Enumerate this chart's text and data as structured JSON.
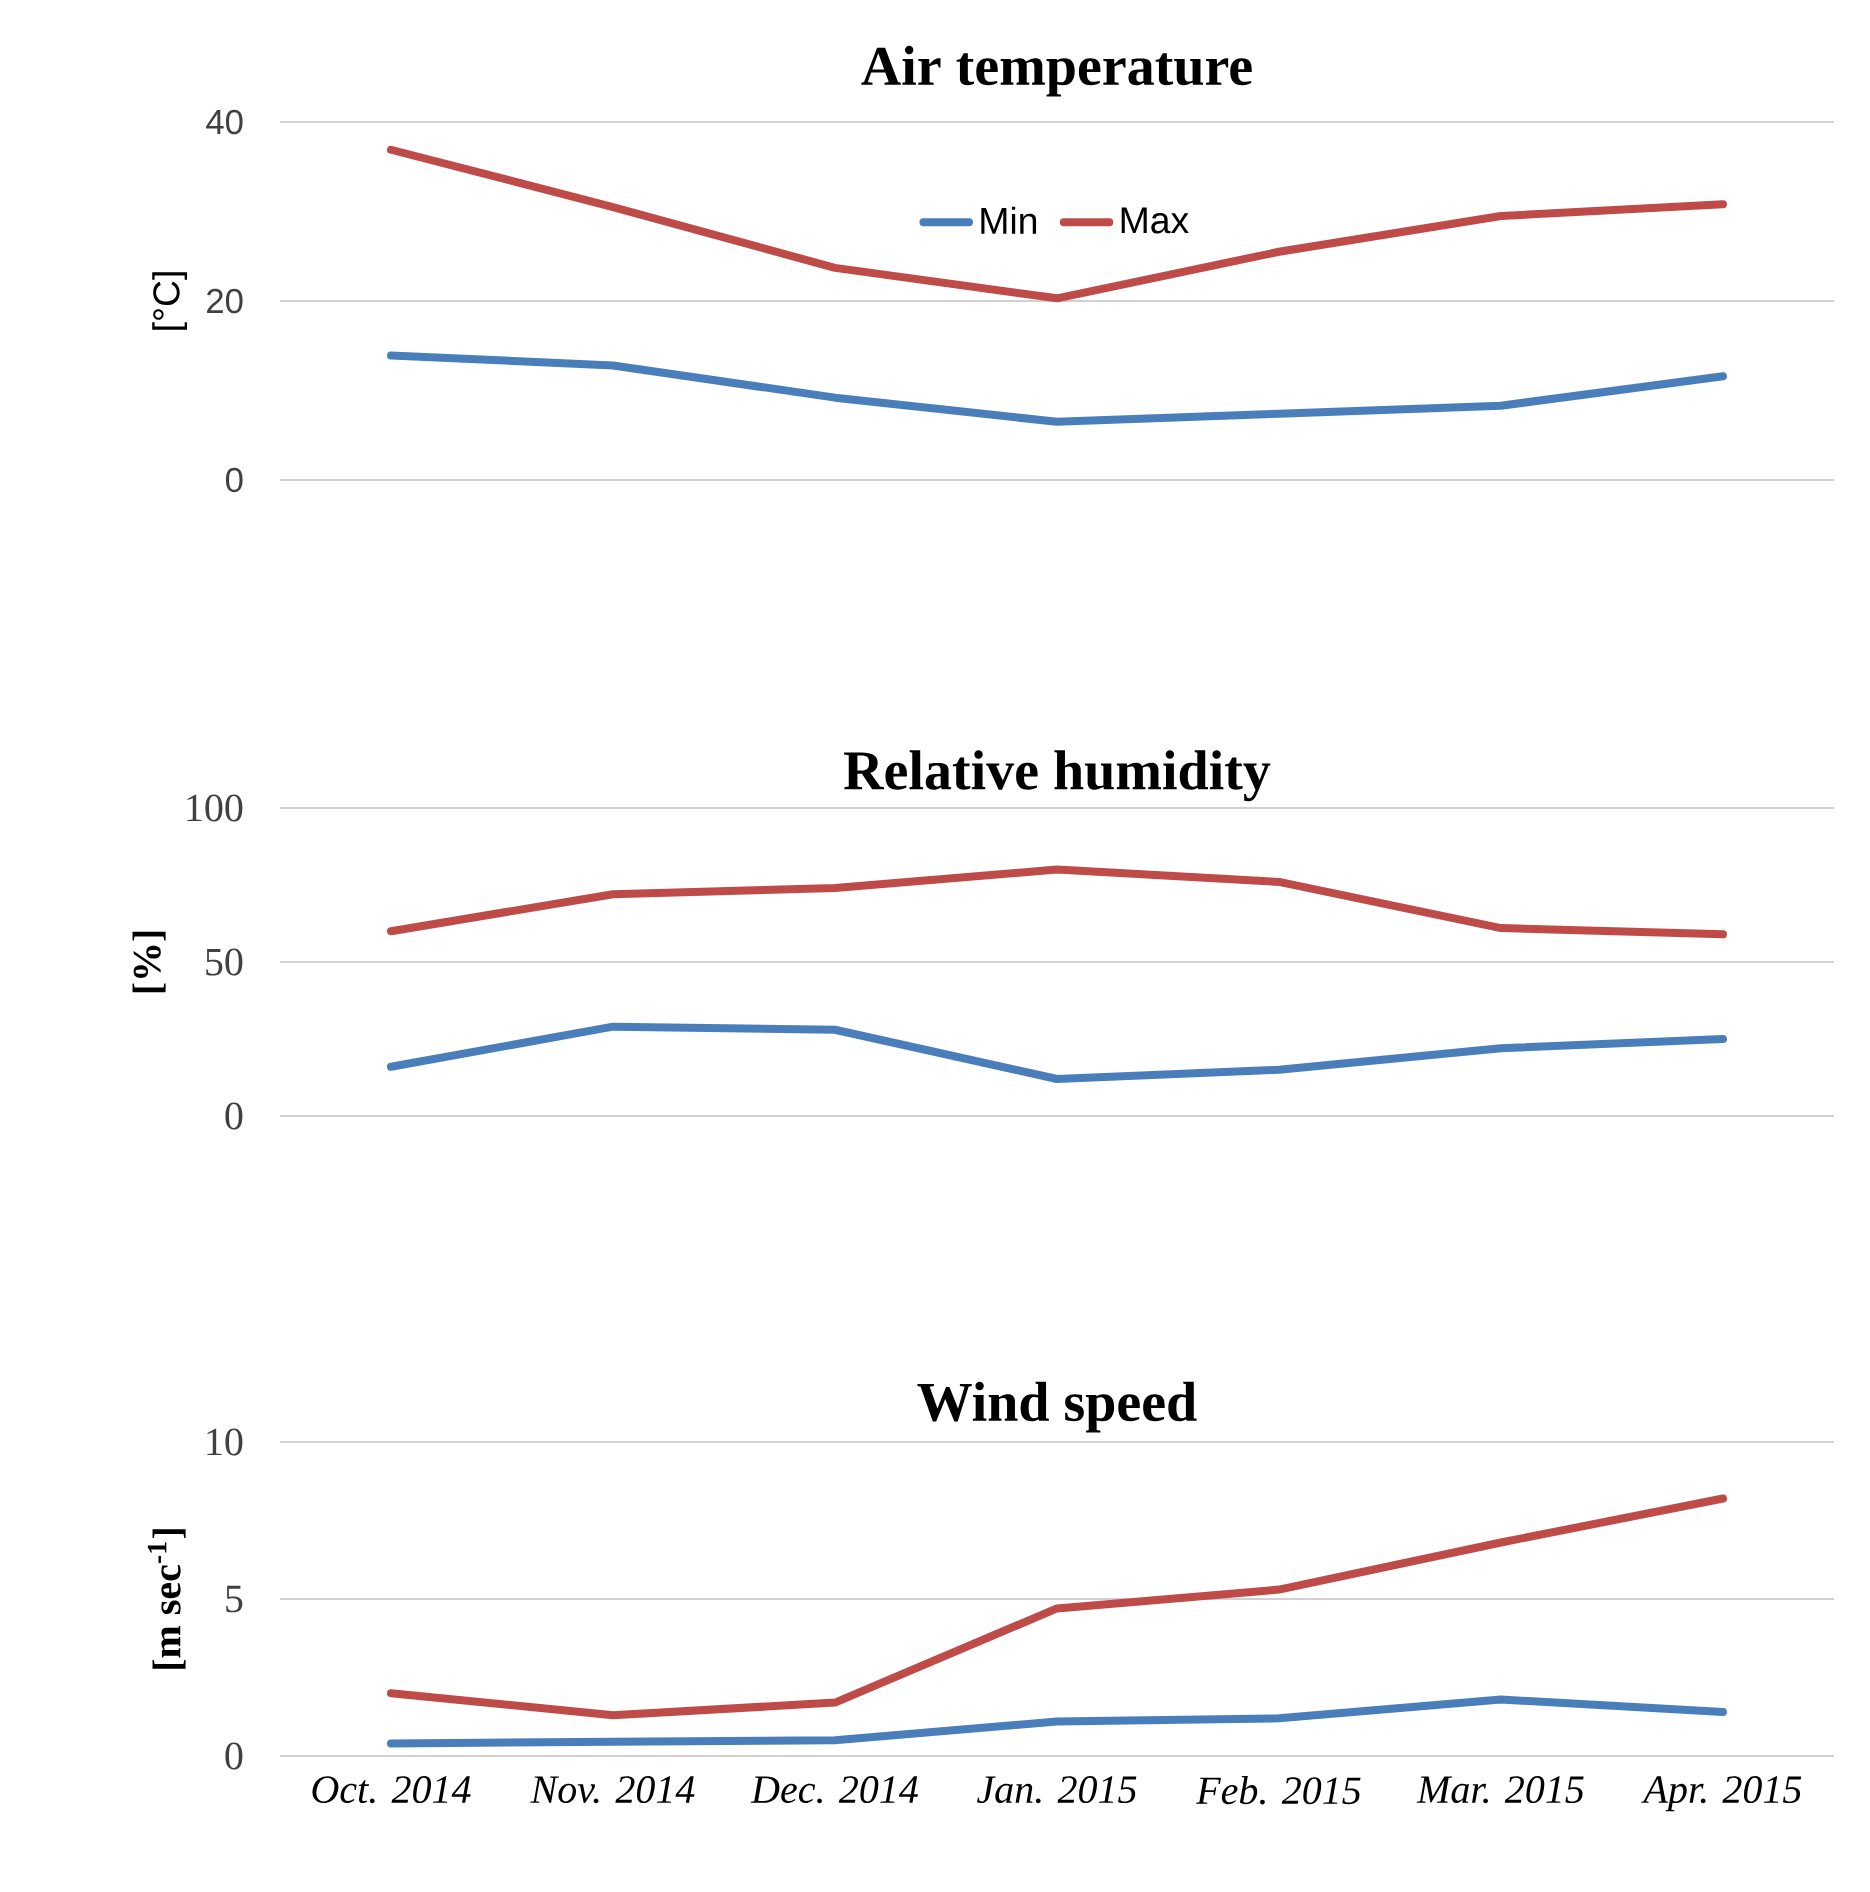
{
  "chart_data": [
    {
      "type": "line",
      "title": "Air temperature",
      "ylabel": "[°C]",
      "categories": [
        null,
        null,
        null,
        null,
        null,
        null,
        null
      ],
      "series": [
        {
          "name": "Min",
          "color": "#4a7ebb",
          "values": [
            13.9,
            12.8,
            9.2,
            6.5,
            7.4,
            8.3,
            11.6
          ]
        },
        {
          "name": "Max",
          "color": "#be4b48",
          "values": [
            36.9,
            30.5,
            23.7,
            20.3,
            25.5,
            29.5,
            30.8
          ]
        }
      ],
      "ylim": [
        0,
        40
      ],
      "yticks": [
        0,
        20,
        40
      ],
      "grid": "y",
      "legend": "top",
      "marker": "none",
      "line_style": "solid",
      "tick_labels": "y"
    },
    {
      "type": "line",
      "title": "Relative humidity",
      "ylabel": "[%]",
      "categories": [
        null,
        null,
        null,
        null,
        null,
        null,
        null
      ],
      "series": [
        {
          "color": "#4a7ebb",
          "values": [
            16,
            29,
            28,
            12,
            15,
            22,
            25
          ]
        },
        {
          "color": "#be4b48",
          "values": [
            60,
            72,
            74,
            80,
            76,
            61,
            59
          ]
        }
      ],
      "ylim": [
        0,
        100
      ],
      "yticks": [
        0,
        50,
        100
      ],
      "grid": "y",
      "marker": "none",
      "line_style": "solid",
      "tick_labels": "y"
    },
    {
      "type": "line",
      "title": "Wind speed",
      "ylabel": "[m sec$^{-1}$]",
      "categories": [
        "Oct. 2014",
        "Nov. 2014",
        "Dec. 2014",
        "Jan. 2015",
        "Feb. 2015",
        "Mar. 2015",
        "Apr. 2015"
      ],
      "series": [
        {
          "color": "#4a7ebb",
          "values": [
            0.4,
            0.45,
            0.5,
            1.1,
            1.2,
            1.8,
            1.4
          ]
        },
        {
          "color": "#be4b48",
          "values": [
            2.0,
            1.3,
            1.7,
            4.7,
            5.3,
            6.8,
            8.2
          ]
        }
      ],
      "ylim": [
        0,
        10
      ],
      "yticks": [
        0,
        5,
        10
      ],
      "grid": "y",
      "marker": "none",
      "line_style": "solid"
    }
  ]
}
